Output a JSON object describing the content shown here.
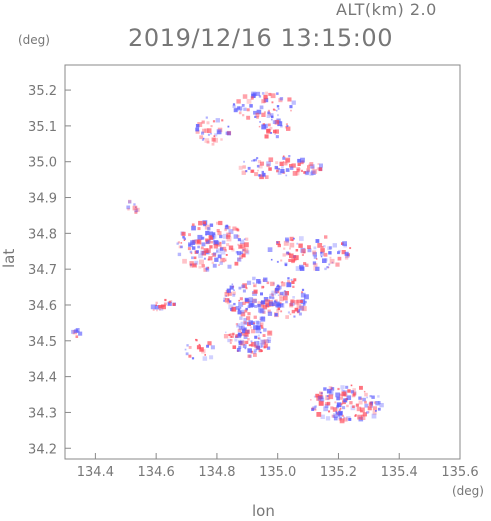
{
  "header": {
    "altitude_label": "ALT(km)  2.0",
    "timestamp": "2019/12/16  13:15:00"
  },
  "axes": {
    "lat_unit": "(deg)",
    "lon_unit": "(deg)",
    "xlabel": "lon",
    "ylabel": "lat"
  },
  "colors": {
    "axis": "#888888",
    "positive": "#ff4a5a",
    "negative": "#5a5aff"
  },
  "chart_data": {
    "type": "heatmap",
    "title": "2019/12/16  13:15:00",
    "xlabel": "lon",
    "ylabel": "lat",
    "xlim": [
      134.3,
      135.6
    ],
    "ylim": [
      34.17,
      35.27
    ],
    "xticks": [
      134.4,
      134.6,
      134.8,
      135.0,
      135.2,
      135.4,
      135.6
    ],
    "xtick_labels": [
      "134.4",
      "134.6",
      "134.8",
      "135.0",
      "135.2",
      "135.4",
      "135.6"
    ],
    "yticks": [
      34.2,
      34.3,
      34.4,
      34.5,
      34.6,
      34.7,
      34.8,
      34.9,
      35.0,
      35.1,
      35.2
    ],
    "ytick_labels": [
      "34.2",
      "34.3",
      "34.4",
      "34.5",
      "34.6",
      "34.7",
      "34.8",
      "34.9",
      "35.0",
      "35.1",
      "35.2"
    ],
    "grid": false,
    "clusters": [
      {
        "lon": 134.95,
        "lat": 35.16,
        "rx": 0.1,
        "ry": 0.04,
        "n": 60
      },
      {
        "lon": 134.78,
        "lat": 35.09,
        "rx": 0.06,
        "ry": 0.04,
        "n": 35
      },
      {
        "lon": 134.98,
        "lat": 35.1,
        "rx": 0.05,
        "ry": 0.03,
        "n": 25
      },
      {
        "lon": 135.0,
        "lat": 34.99,
        "rx": 0.14,
        "ry": 0.03,
        "n": 80
      },
      {
        "lon": 134.52,
        "lat": 34.88,
        "rx": 0.02,
        "ry": 0.02,
        "n": 10
      },
      {
        "lon": 134.78,
        "lat": 34.77,
        "rx": 0.12,
        "ry": 0.07,
        "n": 160
      },
      {
        "lon": 135.1,
        "lat": 34.75,
        "rx": 0.14,
        "ry": 0.05,
        "n": 90
      },
      {
        "lon": 134.92,
        "lat": 34.62,
        "rx": 0.1,
        "ry": 0.06,
        "n": 120
      },
      {
        "lon": 134.9,
        "lat": 34.51,
        "rx": 0.08,
        "ry": 0.05,
        "n": 110
      },
      {
        "lon": 135.03,
        "lat": 34.62,
        "rx": 0.06,
        "ry": 0.06,
        "n": 60
      },
      {
        "lon": 134.33,
        "lat": 34.52,
        "rx": 0.015,
        "ry": 0.02,
        "n": 8
      },
      {
        "lon": 134.62,
        "lat": 34.6,
        "rx": 0.04,
        "ry": 0.02,
        "n": 20
      },
      {
        "lon": 135.22,
        "lat": 34.33,
        "rx": 0.12,
        "ry": 0.05,
        "n": 140
      },
      {
        "lon": 134.74,
        "lat": 34.48,
        "rx": 0.05,
        "ry": 0.03,
        "n": 18
      }
    ]
  }
}
